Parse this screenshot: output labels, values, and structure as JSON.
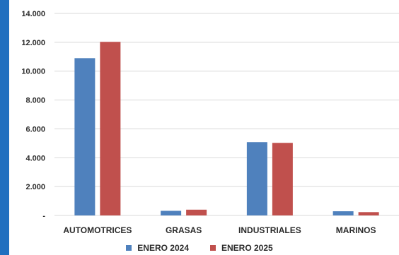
{
  "colors": {
    "frame": "#1f6fbf",
    "grid": "#d9d9d9"
  },
  "chart_data": {
    "type": "bar",
    "categories": [
      "AUTOMOTRICES",
      "GRASAS",
      "INDUSTRIALES",
      "MARINOS"
    ],
    "series": [
      {
        "name": "ENERO 2024",
        "color": "#4f81bd",
        "values": [
          10900,
          320,
          5080,
          290
        ]
      },
      {
        "name": "ENERO 2025",
        "color": "#c0504d",
        "values": [
          12030,
          400,
          5030,
          230
        ]
      }
    ],
    "y_ticks": [
      0,
      2000,
      4000,
      6000,
      8000,
      10000,
      12000,
      14000
    ],
    "y_tick_labels": [
      "-",
      "2.000",
      "4.000",
      "6.000",
      "8.000",
      "10.000",
      "12.000",
      "14.000"
    ],
    "ylim": [
      0,
      14000
    ],
    "grid": true,
    "legend_position": "bottom"
  }
}
